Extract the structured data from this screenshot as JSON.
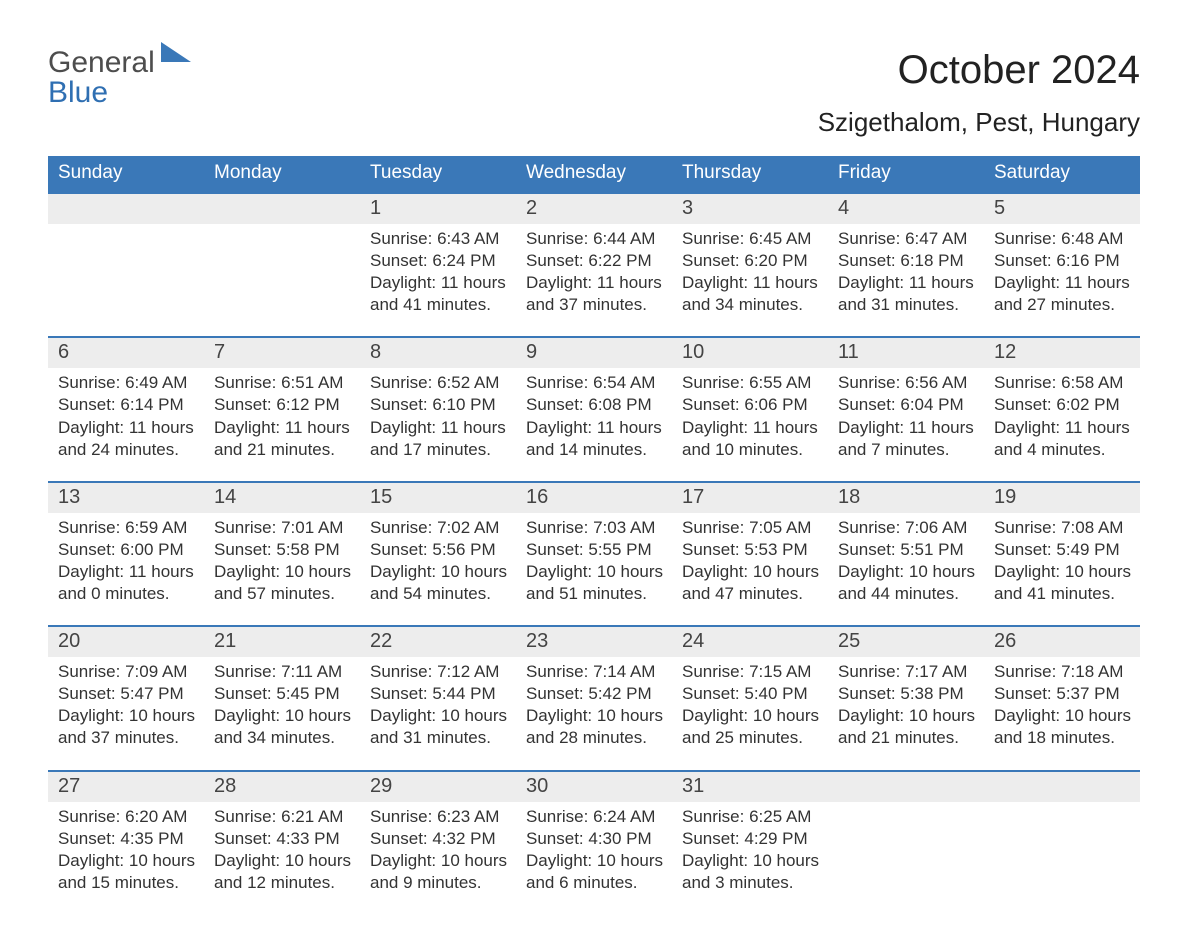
{
  "logo": {
    "part1": "General",
    "part2": "Blue"
  },
  "header": {
    "month_title": "October 2024",
    "location": "Szigethalom, Pest, Hungary"
  },
  "colors": {
    "brand_blue": "#3a78b8",
    "header_row_bg": "#3a78b8",
    "header_row_text": "#ffffff",
    "daynum_bg": "#ededed",
    "daynum_border": "#3a78b8",
    "text": "#333333",
    "logo_gray": "#4d4d4d",
    "logo_blue": "#2f6fb2",
    "page_bg": "#ffffff"
  },
  "typography": {
    "title_fontsize": 40,
    "location_fontsize": 26,
    "weekday_fontsize": 19,
    "daynum_fontsize": 20,
    "body_fontsize": 17,
    "font_family": "Arial"
  },
  "weekdays": [
    "Sunday",
    "Monday",
    "Tuesday",
    "Wednesday",
    "Thursday",
    "Friday",
    "Saturday"
  ],
  "weeks": [
    [
      null,
      null,
      {
        "day": "1",
        "sunrise": "Sunrise: 6:43 AM",
        "sunset": "Sunset: 6:24 PM",
        "daylight1": "Daylight: 11 hours",
        "daylight2": "and 41 minutes."
      },
      {
        "day": "2",
        "sunrise": "Sunrise: 6:44 AM",
        "sunset": "Sunset: 6:22 PM",
        "daylight1": "Daylight: 11 hours",
        "daylight2": "and 37 minutes."
      },
      {
        "day": "3",
        "sunrise": "Sunrise: 6:45 AM",
        "sunset": "Sunset: 6:20 PM",
        "daylight1": "Daylight: 11 hours",
        "daylight2": "and 34 minutes."
      },
      {
        "day": "4",
        "sunrise": "Sunrise: 6:47 AM",
        "sunset": "Sunset: 6:18 PM",
        "daylight1": "Daylight: 11 hours",
        "daylight2": "and 31 minutes."
      },
      {
        "day": "5",
        "sunrise": "Sunrise: 6:48 AM",
        "sunset": "Sunset: 6:16 PM",
        "daylight1": "Daylight: 11 hours",
        "daylight2": "and 27 minutes."
      }
    ],
    [
      {
        "day": "6",
        "sunrise": "Sunrise: 6:49 AM",
        "sunset": "Sunset: 6:14 PM",
        "daylight1": "Daylight: 11 hours",
        "daylight2": "and 24 minutes."
      },
      {
        "day": "7",
        "sunrise": "Sunrise: 6:51 AM",
        "sunset": "Sunset: 6:12 PM",
        "daylight1": "Daylight: 11 hours",
        "daylight2": "and 21 minutes."
      },
      {
        "day": "8",
        "sunrise": "Sunrise: 6:52 AM",
        "sunset": "Sunset: 6:10 PM",
        "daylight1": "Daylight: 11 hours",
        "daylight2": "and 17 minutes."
      },
      {
        "day": "9",
        "sunrise": "Sunrise: 6:54 AM",
        "sunset": "Sunset: 6:08 PM",
        "daylight1": "Daylight: 11 hours",
        "daylight2": "and 14 minutes."
      },
      {
        "day": "10",
        "sunrise": "Sunrise: 6:55 AM",
        "sunset": "Sunset: 6:06 PM",
        "daylight1": "Daylight: 11 hours",
        "daylight2": "and 10 minutes."
      },
      {
        "day": "11",
        "sunrise": "Sunrise: 6:56 AM",
        "sunset": "Sunset: 6:04 PM",
        "daylight1": "Daylight: 11 hours",
        "daylight2": "and 7 minutes."
      },
      {
        "day": "12",
        "sunrise": "Sunrise: 6:58 AM",
        "sunset": "Sunset: 6:02 PM",
        "daylight1": "Daylight: 11 hours",
        "daylight2": "and 4 minutes."
      }
    ],
    [
      {
        "day": "13",
        "sunrise": "Sunrise: 6:59 AM",
        "sunset": "Sunset: 6:00 PM",
        "daylight1": "Daylight: 11 hours",
        "daylight2": "and 0 minutes."
      },
      {
        "day": "14",
        "sunrise": "Sunrise: 7:01 AM",
        "sunset": "Sunset: 5:58 PM",
        "daylight1": "Daylight: 10 hours",
        "daylight2": "and 57 minutes."
      },
      {
        "day": "15",
        "sunrise": "Sunrise: 7:02 AM",
        "sunset": "Sunset: 5:56 PM",
        "daylight1": "Daylight: 10 hours",
        "daylight2": "and 54 minutes."
      },
      {
        "day": "16",
        "sunrise": "Sunrise: 7:03 AM",
        "sunset": "Sunset: 5:55 PM",
        "daylight1": "Daylight: 10 hours",
        "daylight2": "and 51 minutes."
      },
      {
        "day": "17",
        "sunrise": "Sunrise: 7:05 AM",
        "sunset": "Sunset: 5:53 PM",
        "daylight1": "Daylight: 10 hours",
        "daylight2": "and 47 minutes."
      },
      {
        "day": "18",
        "sunrise": "Sunrise: 7:06 AM",
        "sunset": "Sunset: 5:51 PM",
        "daylight1": "Daylight: 10 hours",
        "daylight2": "and 44 minutes."
      },
      {
        "day": "19",
        "sunrise": "Sunrise: 7:08 AM",
        "sunset": "Sunset: 5:49 PM",
        "daylight1": "Daylight: 10 hours",
        "daylight2": "and 41 minutes."
      }
    ],
    [
      {
        "day": "20",
        "sunrise": "Sunrise: 7:09 AM",
        "sunset": "Sunset: 5:47 PM",
        "daylight1": "Daylight: 10 hours",
        "daylight2": "and 37 minutes."
      },
      {
        "day": "21",
        "sunrise": "Sunrise: 7:11 AM",
        "sunset": "Sunset: 5:45 PM",
        "daylight1": "Daylight: 10 hours",
        "daylight2": "and 34 minutes."
      },
      {
        "day": "22",
        "sunrise": "Sunrise: 7:12 AM",
        "sunset": "Sunset: 5:44 PM",
        "daylight1": "Daylight: 10 hours",
        "daylight2": "and 31 minutes."
      },
      {
        "day": "23",
        "sunrise": "Sunrise: 7:14 AM",
        "sunset": "Sunset: 5:42 PM",
        "daylight1": "Daylight: 10 hours",
        "daylight2": "and 28 minutes."
      },
      {
        "day": "24",
        "sunrise": "Sunrise: 7:15 AM",
        "sunset": "Sunset: 5:40 PM",
        "daylight1": "Daylight: 10 hours",
        "daylight2": "and 25 minutes."
      },
      {
        "day": "25",
        "sunrise": "Sunrise: 7:17 AM",
        "sunset": "Sunset: 5:38 PM",
        "daylight1": "Daylight: 10 hours",
        "daylight2": "and 21 minutes."
      },
      {
        "day": "26",
        "sunrise": "Sunrise: 7:18 AM",
        "sunset": "Sunset: 5:37 PM",
        "daylight1": "Daylight: 10 hours",
        "daylight2": "and 18 minutes."
      }
    ],
    [
      {
        "day": "27",
        "sunrise": "Sunrise: 6:20 AM",
        "sunset": "Sunset: 4:35 PM",
        "daylight1": "Daylight: 10 hours",
        "daylight2": "and 15 minutes."
      },
      {
        "day": "28",
        "sunrise": "Sunrise: 6:21 AM",
        "sunset": "Sunset: 4:33 PM",
        "daylight1": "Daylight: 10 hours",
        "daylight2": "and 12 minutes."
      },
      {
        "day": "29",
        "sunrise": "Sunrise: 6:23 AM",
        "sunset": "Sunset: 4:32 PM",
        "daylight1": "Daylight: 10 hours",
        "daylight2": "and 9 minutes."
      },
      {
        "day": "30",
        "sunrise": "Sunrise: 6:24 AM",
        "sunset": "Sunset: 4:30 PM",
        "daylight1": "Daylight: 10 hours",
        "daylight2": "and 6 minutes."
      },
      {
        "day": "31",
        "sunrise": "Sunrise: 6:25 AM",
        "sunset": "Sunset: 4:29 PM",
        "daylight1": "Daylight: 10 hours",
        "daylight2": "and 3 minutes."
      },
      null,
      null
    ]
  ]
}
